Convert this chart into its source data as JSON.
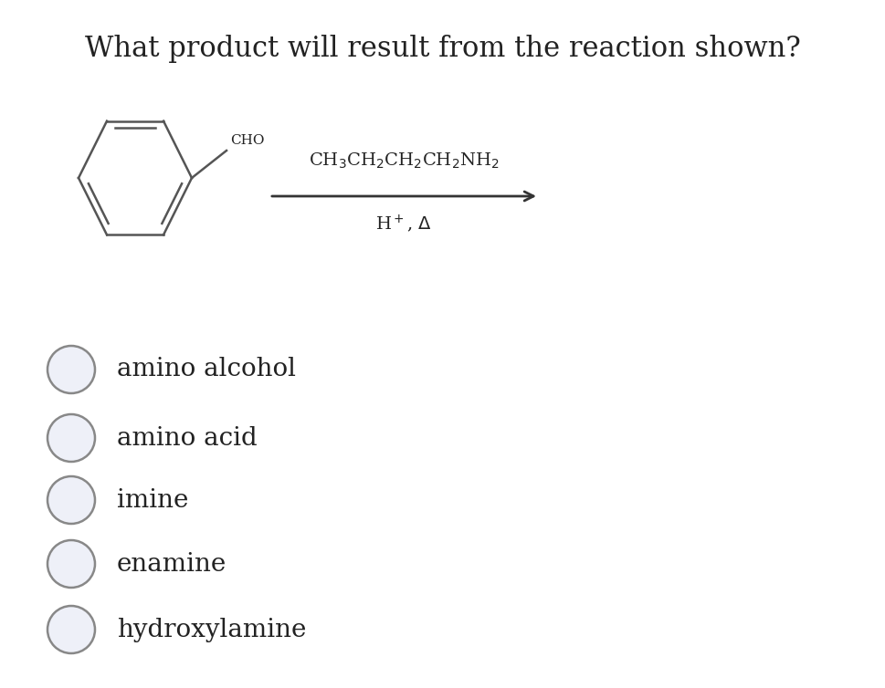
{
  "title": "What product will result from the reaction shown?",
  "title_fontsize": 22,
  "background_color": "#ffffff",
  "text_color": "#222222",
  "choices": [
    "amino alcohol",
    "amino acid",
    "imine",
    "enamine",
    "hydroxylamine"
  ],
  "choices_fontsize": 20,
  "reagent_above": "CH$_3$CH$_2$CH$_2$CH$_2$NH$_2$",
  "reagent_below": "H$^+$, $\\Delta$",
  "ring_color": "#555555",
  "circle_edge_color": "#888888",
  "circle_fill_color": "#eef0f8"
}
